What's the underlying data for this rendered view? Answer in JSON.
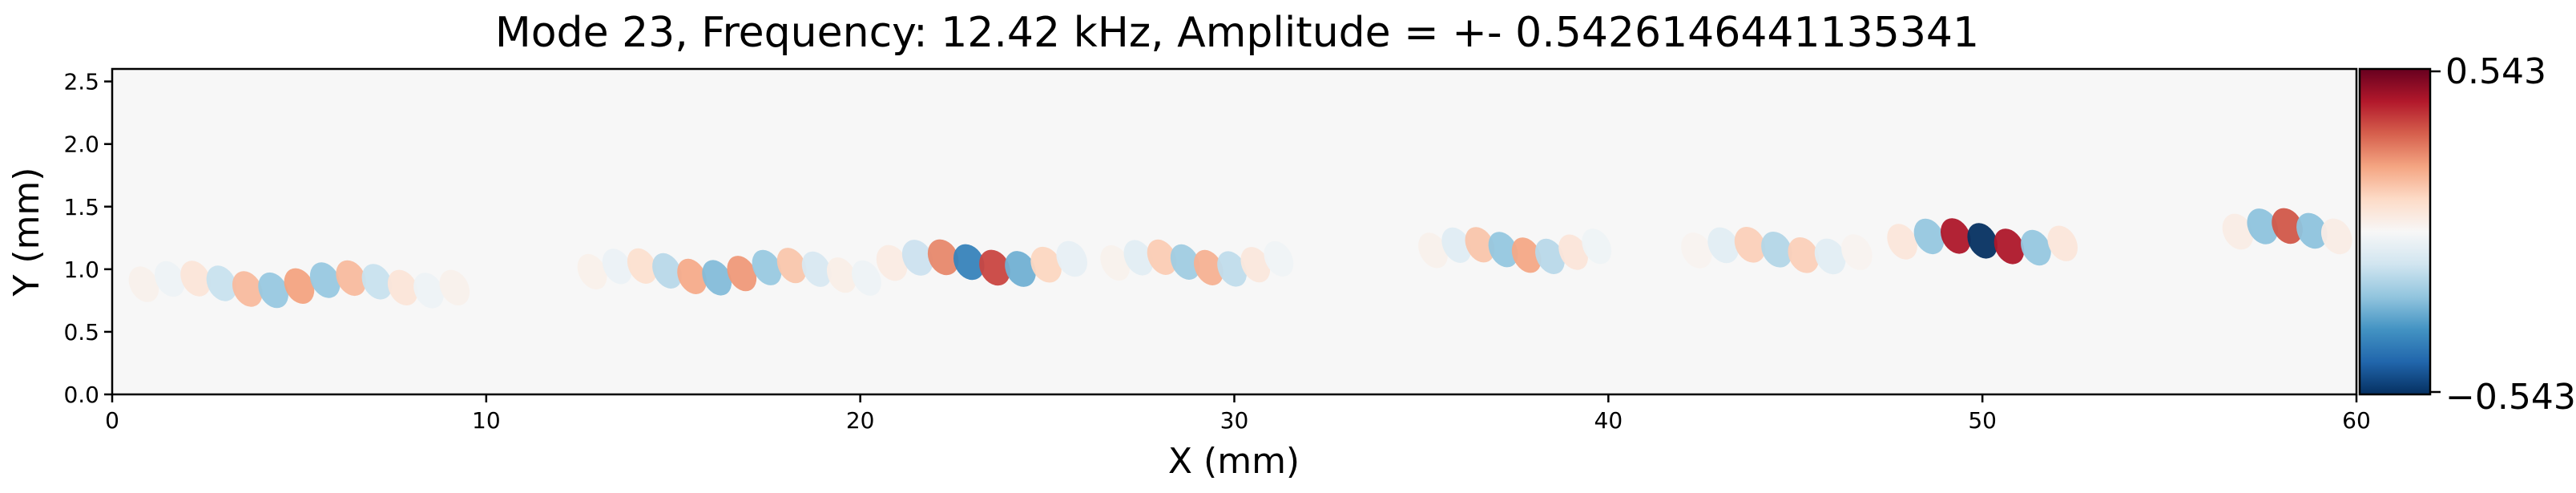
{
  "chart_data": {
    "type": "heatmap",
    "title": "Mode 23, Frequency: 12.42 kHz, Amplitude = +- 0.5426146441135341",
    "xlabel": "X (mm)",
    "ylabel": "Y (mm)",
    "xlim": [
      0,
      60
    ],
    "ylim": [
      0,
      2.6
    ],
    "xticks": [
      0,
      10,
      20,
      30,
      40,
      50,
      60
    ],
    "yticks": [
      0.0,
      0.5,
      1.0,
      1.5,
      2.0,
      2.5
    ],
    "xtick_labels": [
      "0",
      "10",
      "20",
      "30",
      "40",
      "50",
      "60"
    ],
    "ytick_labels": [
      "0.0",
      "0.5",
      "1.0",
      "1.5",
      "2.0",
      "2.5"
    ],
    "colormap": "RdBu_r",
    "colormap_stops": [
      "#053061",
      "#2166ac",
      "#4393c3",
      "#92c5de",
      "#d1e5f0",
      "#f7f7f7",
      "#fddbc7",
      "#f4a582",
      "#d6604d",
      "#b2182b",
      "#67001f"
    ],
    "vmin": -0.543,
    "vmax": 0.543,
    "colorbar_tick_labels": [
      "0.543",
      "−0.543"
    ],
    "grid": false,
    "wave_packets": [
      {
        "x_start": 0.5,
        "x_end": 9.5,
        "y_center": 0.88,
        "wavelength_mm": 1.35,
        "peak_value": 0.22
      },
      {
        "x_start": 12.5,
        "x_end": 20.5,
        "y_center": 0.98,
        "wavelength_mm": 1.3,
        "peak_value": 0.24
      },
      {
        "x_start": 20.5,
        "x_end": 26.0,
        "y_center": 1.05,
        "wavelength_mm": 1.4,
        "peak_value": 0.38
      },
      {
        "x_start": 26.5,
        "x_end": 31.5,
        "y_center": 1.05,
        "wavelength_mm": 1.3,
        "peak_value": 0.2
      },
      {
        "x_start": 35.0,
        "x_end": 40.0,
        "y_center": 1.15,
        "wavelength_mm": 1.3,
        "peak_value": 0.22
      },
      {
        "x_start": 42.0,
        "x_end": 47.0,
        "y_center": 1.15,
        "wavelength_mm": 1.4,
        "peak_value": 0.16
      },
      {
        "x_start": 47.5,
        "x_end": 52.5,
        "y_center": 1.22,
        "wavelength_mm": 1.35,
        "peak_value": 0.543
      },
      {
        "x_start": 56.5,
        "x_end": 59.8,
        "y_center": 1.3,
        "wavelength_mm": 1.4,
        "peak_value": 0.34
      }
    ]
  }
}
